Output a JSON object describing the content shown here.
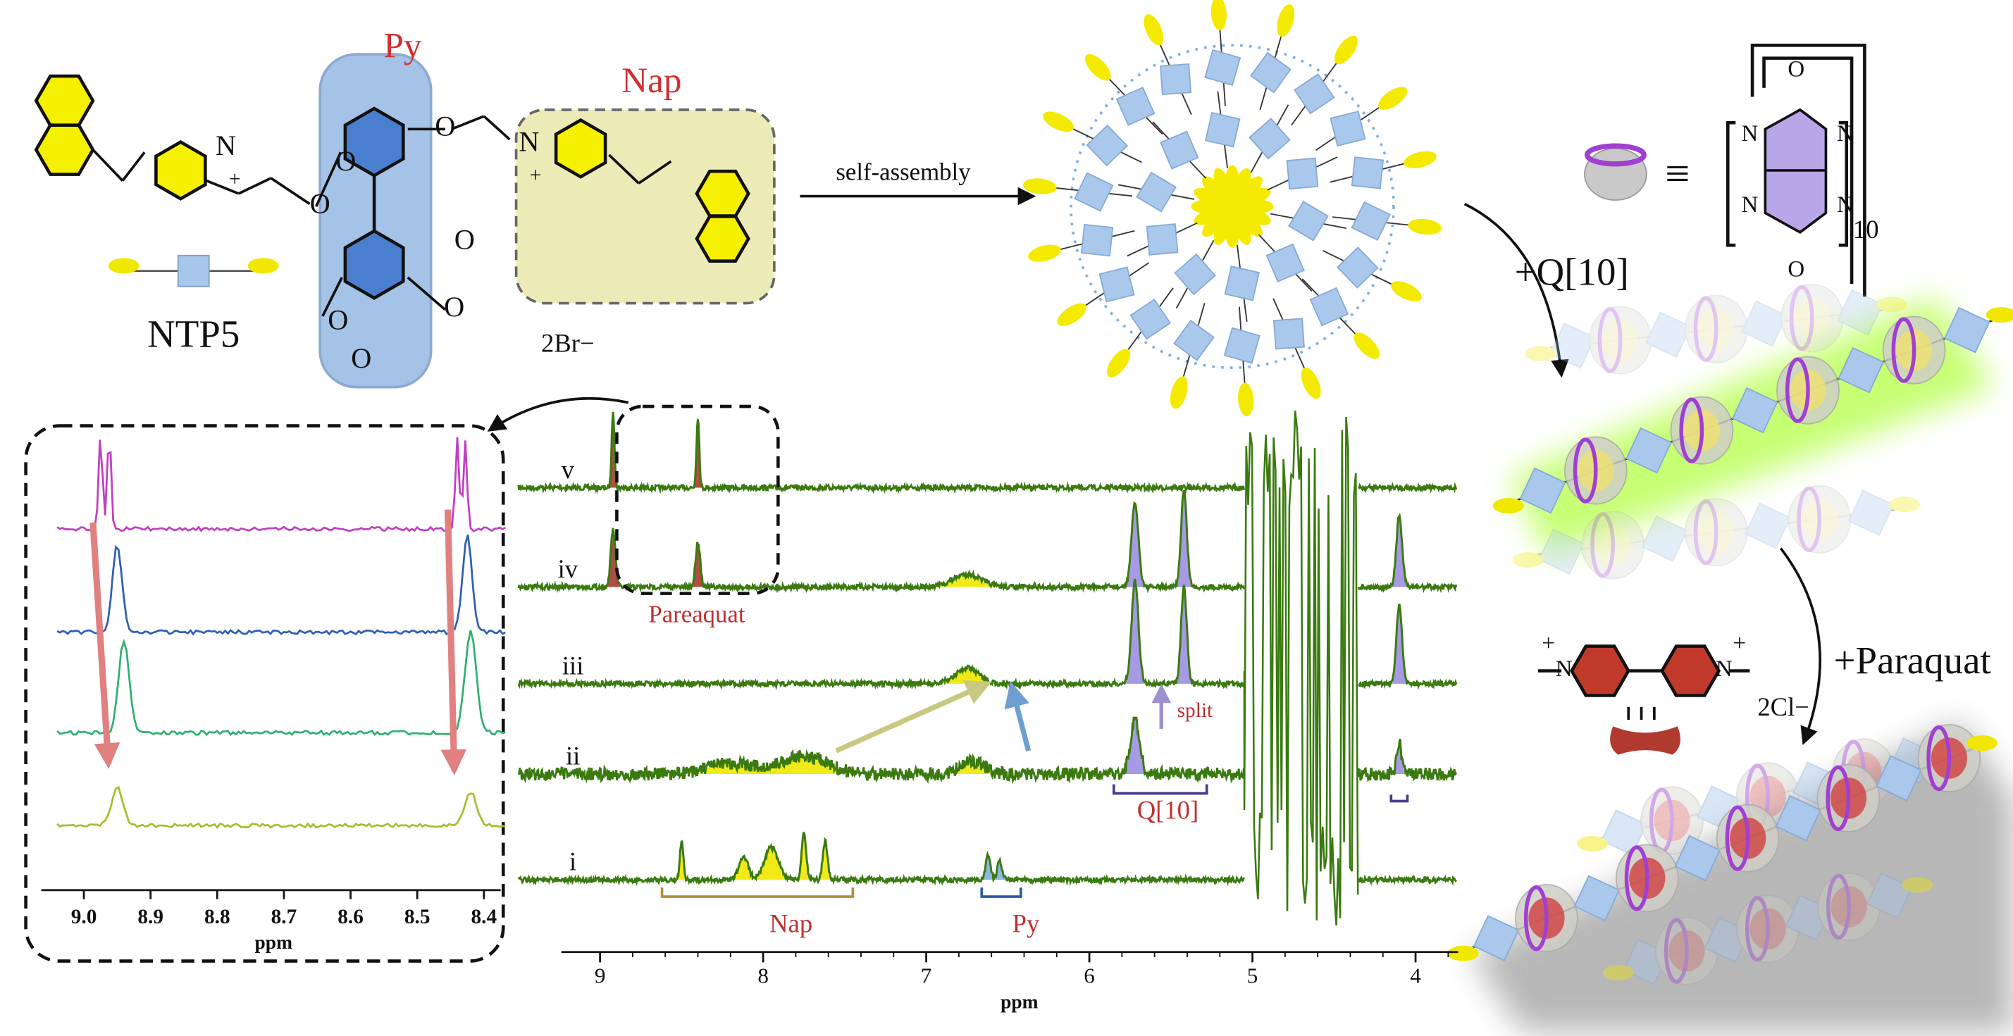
{
  "scheme": {
    "py_label": "Py",
    "nap_label": "Nap",
    "ntp5_label": "NTP5",
    "ntp5_counterion": "2Br−",
    "ntp5_atoms": [
      "N",
      "+",
      "O",
      "O",
      "O",
      "O",
      "O",
      "O",
      "O",
      "N",
      "+"
    ],
    "arrow_label": "self-assembly",
    "q10_equiv": "≡",
    "q10_atoms": [
      "O",
      "N",
      "N",
      "N",
      "N",
      "O"
    ],
    "q10_repeat": "10",
    "q10_add": "+Q[10]",
    "paraquat_atoms": [
      "+",
      "N",
      "N",
      "+"
    ],
    "paraquat_counterion": "2Cl−",
    "paraquat_add": "+Paraquat"
  },
  "main_spectrum": {
    "traces": [
      "v",
      "iv",
      "iii",
      "ii",
      "i"
    ],
    "labels": {
      "paraquat": "Pareaquat",
      "split": "split",
      "q10": "Q[10]",
      "nap": "Nap",
      "py": "Py"
    },
    "xticks": [
      "9",
      "8",
      "7",
      "6",
      "5",
      "4"
    ],
    "xlabel": "ppm"
  },
  "inset_spectrum": {
    "xticks": [
      "9.0",
      "8.9",
      "8.8",
      "8.7",
      "8.6",
      "8.5",
      "8.4"
    ],
    "xlabel": "ppm"
  }
}
